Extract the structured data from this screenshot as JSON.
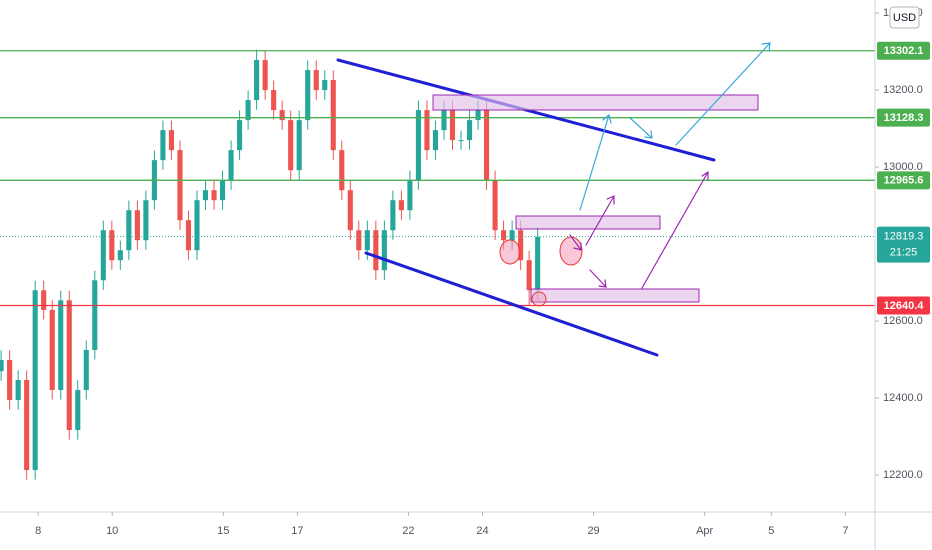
{
  "chart_data": {
    "type": "candlestick",
    "currency": "USD",
    "x": [
      -1,
      -0.77,
      -0.54,
      -0.31,
      -0.08,
      0.15,
      0.38,
      0.61,
      0.84,
      1.07,
      1.3,
      1.53,
      1.76,
      1.99,
      2.22,
      2.45,
      2.68,
      2.91,
      3.14,
      3.37,
      3.6,
      3.83,
      4.06,
      4.29,
      4.52,
      4.75,
      4.98,
      5.21,
      5.44,
      5.67,
      5.9,
      6.13,
      6.36,
      6.59,
      6.82,
      7.05,
      7.28,
      7.51,
      7.74,
      7.97,
      8.2,
      8.43,
      8.66,
      8.89,
      9.12,
      9.35,
      9.58,
      9.81,
      10.04,
      10.27,
      10.5,
      10.73,
      10.96,
      11.19,
      11.42,
      11.65,
      11.88,
      12.11,
      12.34,
      12.57,
      12.8,
      13.03,
      13.26,
      13.49
    ],
    "open": [
      12470,
      12499,
      12395,
      12447,
      12213,
      12680,
      12629,
      12421,
      12654,
      12317,
      12421,
      12525,
      12706,
      12836,
      12758,
      12784,
      12888,
      12810,
      12914,
      13018,
      13096,
      13044,
      12862,
      12784,
      12914,
      12940,
      12914,
      12966,
      13044,
      13122,
      13174,
      13278,
      13200,
      13148,
      13122,
      12992,
      13122,
      13252,
      13200,
      13226,
      13044,
      12940,
      12836,
      12784,
      12836,
      12732,
      12836,
      12914,
      12888,
      12966,
      13148,
      13044,
      13096,
      13148,
      13070,
      13070,
      13122,
      13148,
      12966,
      12836,
      12810,
      12836,
      12758,
      12680
    ],
    "high": [
      12524,
      12524,
      12472,
      12472,
      12705,
      12705,
      12654,
      12679,
      12679,
      12446,
      12550,
      12731,
      12861,
      12861,
      12809,
      12913,
      12913,
      12939,
      13043,
      13121,
      13121,
      13069,
      12887,
      12939,
      12965,
      12965,
      12991,
      13069,
      13147,
      13199,
      13305,
      13303,
      13225,
      13173,
      13147,
      13147,
      13277,
      13277,
      13251,
      13251,
      13069,
      12965,
      12861,
      12861,
      12861,
      12861,
      12939,
      12939,
      12991,
      13173,
      13173,
      13121,
      13173,
      13173,
      13095,
      13147,
      13173,
      13173,
      12991,
      12861,
      12861,
      12861,
      12783,
      12844
    ],
    "low": [
      12445,
      12370,
      12370,
      12188,
      12188,
      12604,
      12396,
      12396,
      12292,
      12292,
      12396,
      12500,
      12681,
      12733,
      12733,
      12759,
      12785,
      12785,
      12889,
      12993,
      13019,
      12837,
      12759,
      12759,
      12889,
      12889,
      12889,
      12941,
      13019,
      13097,
      13149,
      13175,
      13123,
      13097,
      12967,
      12967,
      13097,
      13175,
      13175,
      13019,
      12915,
      12811,
      12759,
      12759,
      12707,
      12707,
      12811,
      12863,
      12863,
      12941,
      13019,
      13019,
      13071,
      13045,
      13045,
      13045,
      13097,
      12941,
      12811,
      12785,
      12785,
      12733,
      12640,
      12655
    ],
    "close": [
      12499,
      12395,
      12447,
      12213,
      12680,
      12629,
      12421,
      12654,
      12317,
      12421,
      12525,
      12706,
      12836,
      12758,
      12784,
      12888,
      12810,
      12914,
      13018,
      13096,
      13044,
      12862,
      12784,
      12914,
      12940,
      12914,
      12966,
      13044,
      13122,
      13174,
      13278,
      13200,
      13148,
      13122,
      12992,
      13122,
      13252,
      13200,
      13226,
      13044,
      12940,
      12836,
      12784,
      12836,
      12732,
      12836,
      12914,
      12888,
      12966,
      13148,
      13044,
      13096,
      13148,
      13070,
      13070,
      13122,
      13148,
      12966,
      12836,
      12810,
      12836,
      12758,
      12680,
      12819
    ],
    "up_color": "#26a69a",
    "down_color": "#ef5350",
    "xlim": [
      -1.03,
      22.6
    ],
    "xticks": [
      {
        "value": 0,
        "label": "8"
      },
      {
        "value": 2,
        "label": "10"
      },
      {
        "value": 5,
        "label": "15"
      },
      {
        "value": 7,
        "label": "17"
      },
      {
        "value": 10,
        "label": "22"
      },
      {
        "value": 12,
        "label": "24"
      },
      {
        "value": 15,
        "label": "29"
      },
      {
        "value": 18,
        "label": "Apr"
      },
      {
        "value": 19.8,
        "label": "5"
      },
      {
        "value": 21.8,
        "label": "7"
      }
    ],
    "ylim": [
      12104,
      13434
    ],
    "yticks": [
      {
        "value": 12200,
        "label": "12200.0"
      },
      {
        "value": 12400,
        "label": "12400.0"
      },
      {
        "value": 12600,
        "label": "12600.0"
      },
      {
        "value": 13000,
        "label": "13000.0"
      },
      {
        "value": 13200,
        "label": "13200.0"
      },
      {
        "value": 13400,
        "label": "13400.0"
      }
    ],
    "grid": false,
    "price_lines": [
      {
        "value": 13302.1,
        "color": "#4caf50"
      },
      {
        "value": 13128.3,
        "color": "#4caf50"
      },
      {
        "value": 12965.6,
        "color": "#4caf50"
      },
      {
        "value": 12640.4,
        "color": "#f23645"
      }
    ],
    "last_price": {
      "value": 12819.3,
      "countdown": "21:25",
      "color": "#26a69a"
    }
  }
}
